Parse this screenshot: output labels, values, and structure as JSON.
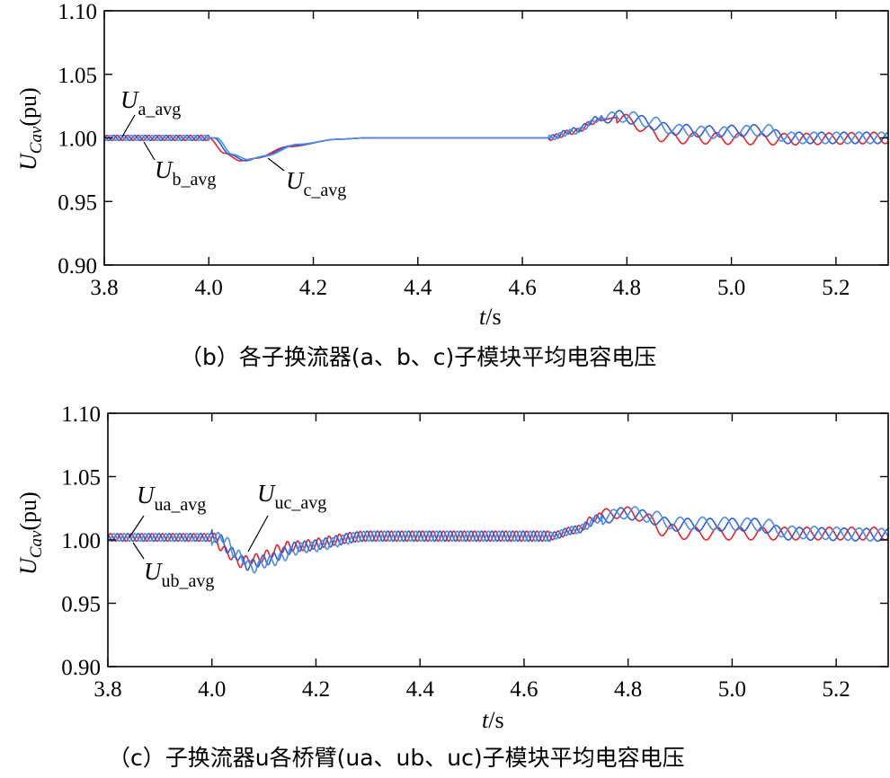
{
  "chart_data": [
    {
      "type": "line",
      "caption": "（b）各子换流器(a、b、c)子模块平均电容电压",
      "xlabel_main": "t",
      "xlabel_unit": "/s",
      "ylabel_main": "U",
      "ylabel_sub": "Cav",
      "ylabel_unit": "(pu)",
      "xlim": [
        3.8,
        5.3
      ],
      "ylim": [
        0.9,
        1.1
      ],
      "xticks": [
        "3.8",
        "4.0",
        "4.2",
        "4.4",
        "4.6",
        "4.8",
        "5.0",
        "5.2"
      ],
      "xtick_values": [
        3.8,
        4.0,
        4.2,
        4.4,
        4.6,
        4.8,
        5.0,
        5.2
      ],
      "yticks": [
        "0.90",
        "0.95",
        "1.00",
        "1.05",
        "1.10"
      ],
      "ytick_values": [
        0.9,
        0.95,
        1.0,
        1.05,
        1.1
      ],
      "series": [
        {
          "name": "U_a_avg",
          "color": "#e8212a",
          "knots": [
            [
              3.8,
              1.0
            ],
            [
              4.0,
              1.0
            ],
            [
              4.03,
              0.988
            ],
            [
              4.06,
              0.982
            ],
            [
              4.09,
              0.984
            ],
            [
              4.15,
              0.993
            ],
            [
              4.25,
              0.999
            ],
            [
              4.3,
              1.0
            ],
            [
              4.65,
              1.0
            ],
            [
              4.7,
              1.005
            ],
            [
              4.74,
              1.013
            ],
            [
              4.78,
              1.016
            ],
            [
              4.81,
              1.013
            ],
            [
              4.84,
              1.005
            ],
            [
              4.88,
              1.0
            ],
            [
              5.1,
              0.999
            ],
            [
              5.3,
              1.0
            ]
          ],
          "osc": [
            [
              3.8,
              4.0,
              0.002,
              0.02
            ],
            [
              4.65,
              4.75,
              0.002,
              0.02
            ],
            [
              4.78,
              5.3,
              0.0045,
              0.043
            ]
          ]
        },
        {
          "name": "U_b_avg",
          "color": "#2a5fd6",
          "knots": [
            [
              3.8,
              1.0
            ],
            [
              4.01,
              1.0
            ],
            [
              4.04,
              0.987
            ],
            [
              4.07,
              0.982
            ],
            [
              4.1,
              0.985
            ],
            [
              4.16,
              0.994
            ],
            [
              4.25,
              0.999
            ],
            [
              4.3,
              1.0
            ],
            [
              4.65,
              1.0
            ],
            [
              4.7,
              1.006
            ],
            [
              4.75,
              1.016
            ],
            [
              4.79,
              1.017
            ],
            [
              4.83,
              1.013
            ],
            [
              4.88,
              1.007
            ],
            [
              4.95,
              1.005
            ],
            [
              5.06,
              1.006
            ],
            [
              5.1,
              1.0
            ],
            [
              5.3,
              1.0
            ]
          ],
          "osc": [
            [
              3.8,
              4.0,
              0.002,
              0.02
            ],
            [
              4.65,
              4.75,
              0.002,
              0.02
            ],
            [
              4.75,
              5.3,
              0.0045,
              0.043
            ]
          ]
        },
        {
          "name": "U_c_avg",
          "color": "#4d8be6",
          "knots": [
            [
              3.8,
              1.0
            ],
            [
              4.015,
              1.0
            ],
            [
              4.045,
              0.987
            ],
            [
              4.075,
              0.983
            ],
            [
              4.11,
              0.986
            ],
            [
              4.17,
              0.995
            ],
            [
              4.25,
              0.999
            ],
            [
              4.3,
              1.0
            ],
            [
              4.65,
              1.0
            ],
            [
              4.7,
              1.005
            ],
            [
              4.75,
              1.015
            ],
            [
              4.8,
              1.017
            ],
            [
              4.84,
              1.013
            ],
            [
              4.9,
              1.006
            ],
            [
              4.97,
              1.004
            ],
            [
              5.07,
              1.006
            ],
            [
              5.11,
              1.0
            ],
            [
              5.3,
              1.0
            ]
          ],
          "osc": [
            [
              3.8,
              4.0,
              0.002,
              0.02
            ],
            [
              4.65,
              4.75,
              0.002,
              0.02
            ],
            [
              4.76,
              5.3,
              0.0045,
              0.043
            ]
          ]
        }
      ],
      "annotations": [
        {
          "main": "U",
          "sub": "a_avg"
        },
        {
          "main": "U",
          "sub": "b_avg"
        },
        {
          "main": "U",
          "sub": "c_avg"
        }
      ]
    },
    {
      "type": "line",
      "caption": "（c）子换流器u各桥臂(ua、ub、uc)子模块平均电容电压",
      "xlabel_main": "t",
      "xlabel_unit": "/s",
      "ylabel_main": "U",
      "ylabel_sub": "Cav",
      "ylabel_unit": "(pu)",
      "xlim": [
        3.8,
        5.3
      ],
      "ylim": [
        0.9,
        1.1
      ],
      "xticks": [
        "3.8",
        "4.0",
        "4.2",
        "4.4",
        "4.6",
        "4.8",
        "5.0",
        "5.2"
      ],
      "xtick_values": [
        3.8,
        4.0,
        4.2,
        4.4,
        4.6,
        4.8,
        5.0,
        5.2
      ],
      "yticks": [
        "0.90",
        "0.95",
        "1.00",
        "1.05",
        "1.10"
      ],
      "ytick_values": [
        0.9,
        0.95,
        1.0,
        1.05,
        1.1
      ],
      "series": [
        {
          "name": "U_ua_avg",
          "color": "#e8212a",
          "knots": [
            [
              3.8,
              1.002
            ],
            [
              4.0,
              1.002
            ],
            [
              4.03,
              0.99
            ],
            [
              4.05,
              0.982
            ],
            [
              4.08,
              0.985
            ],
            [
              4.15,
              0.995
            ],
            [
              4.3,
              1.003
            ],
            [
              4.65,
              1.003
            ],
            [
              4.7,
              1.008
            ],
            [
              4.74,
              1.018
            ],
            [
              4.78,
              1.022
            ],
            [
              4.82,
              1.02
            ],
            [
              4.87,
              1.008
            ],
            [
              4.92,
              1.005
            ],
            [
              5.05,
              1.005
            ],
            [
              5.3,
              1.005
            ]
          ],
          "osc": [
            [
              3.8,
              4.0,
              0.003,
              0.02
            ],
            [
              4.0,
              4.65,
              0.004,
              0.02
            ],
            [
              4.65,
              4.75,
              0.003,
              0.02
            ],
            [
              4.75,
              5.3,
              0.005,
              0.043
            ]
          ]
        },
        {
          "name": "U_ub_avg",
          "color": "#2a5fd6",
          "knots": [
            [
              3.8,
              1.002
            ],
            [
              4.01,
              1.002
            ],
            [
              4.04,
              0.99
            ],
            [
              4.07,
              0.98
            ],
            [
              4.1,
              0.984
            ],
            [
              4.17,
              0.995
            ],
            [
              4.3,
              1.003
            ],
            [
              4.65,
              1.003
            ],
            [
              4.7,
              1.008
            ],
            [
              4.75,
              1.018
            ],
            [
              4.8,
              1.021
            ],
            [
              4.84,
              1.018
            ],
            [
              4.88,
              1.012
            ],
            [
              4.95,
              1.012
            ],
            [
              5.05,
              1.012
            ],
            [
              5.1,
              1.005
            ],
            [
              5.3,
              1.004
            ]
          ],
          "osc": [
            [
              3.8,
              4.0,
              0.003,
              0.02
            ],
            [
              4.0,
              4.65,
              0.004,
              0.02
            ],
            [
              4.65,
              4.75,
              0.003,
              0.02
            ],
            [
              4.75,
              5.3,
              0.005,
              0.043
            ]
          ]
        },
        {
          "name": "U_uc_avg",
          "color": "#4d8be6",
          "knots": [
            [
              3.8,
              1.002
            ],
            [
              4.02,
              1.002
            ],
            [
              4.05,
              0.988
            ],
            [
              4.08,
              0.978
            ],
            [
              4.11,
              0.983
            ],
            [
              4.18,
              0.994
            ],
            [
              4.3,
              1.003
            ],
            [
              4.65,
              1.003
            ],
            [
              4.7,
              1.008
            ],
            [
              4.75,
              1.017
            ],
            [
              4.8,
              1.022
            ],
            [
              4.84,
              1.019
            ],
            [
              4.89,
              1.013
            ],
            [
              4.96,
              1.013
            ],
            [
              5.06,
              1.012
            ],
            [
              5.11,
              1.006
            ],
            [
              5.3,
              1.004
            ]
          ],
          "osc": [
            [
              3.8,
              4.0,
              0.003,
              0.02
            ],
            [
              4.0,
              4.65,
              0.004,
              0.02
            ],
            [
              4.65,
              4.75,
              0.003,
              0.02
            ],
            [
              4.75,
              5.3,
              0.005,
              0.043
            ]
          ]
        }
      ],
      "annotations": [
        {
          "main": "U",
          "sub": "ua_avg"
        },
        {
          "main": "U",
          "sub": "ub_avg"
        },
        {
          "main": "U",
          "sub": "uc_avg"
        }
      ]
    }
  ]
}
